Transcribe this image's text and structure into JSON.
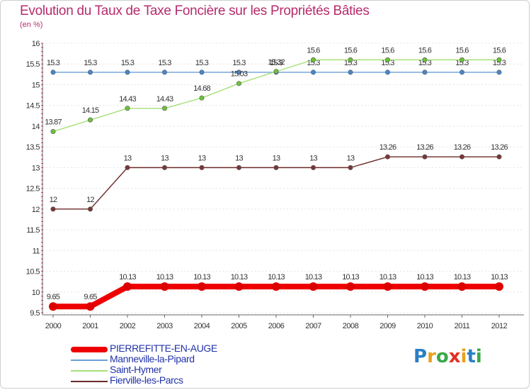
{
  "chart_data": {
    "type": "line",
    "title": "Evolution du Taux de Taxe Foncière sur les Propriétés Bâties",
    "ylabel": "(en %)",
    "xlabel": "",
    "ylim": [
      9.5,
      16
    ],
    "yticks": [
      "9.5",
      "10",
      "10.5",
      "11",
      "11.5",
      "12",
      "12.5",
      "13",
      "13.5",
      "14",
      "14.5",
      "15",
      "15.5",
      "16"
    ],
    "categories": [
      "2000",
      "2001",
      "2002",
      "2003",
      "2004",
      "2005",
      "2006",
      "2007",
      "2008",
      "2009",
      "2010",
      "2011",
      "2012"
    ],
    "series": [
      {
        "name": "Fierville-les-Parcs",
        "color": "#6b2a2a",
        "marker": "#7a3636",
        "values": [
          12,
          12,
          13,
          13,
          13,
          13,
          13,
          13,
          13,
          13.26,
          13.26,
          13.26,
          13.26
        ],
        "labels": [
          "12",
          "12",
          "13",
          "13",
          "13",
          "13",
          "13",
          "13",
          "13",
          "13.26",
          "13.26",
          "13.26",
          "13.26"
        ]
      },
      {
        "name": "Manneville-la-Pipard",
        "color": "#6a9ed8",
        "marker": "#4a86c8",
        "values": [
          15.3,
          15.3,
          15.3,
          15.3,
          15.3,
          15.3,
          15.3,
          15.3,
          15.3,
          15.3,
          15.3,
          15.3,
          15.3
        ],
        "labels": [
          "15.3",
          "15.3",
          "15.3",
          "15.3",
          "15.3",
          "15.3",
          "15.3",
          "15.3",
          "15.3",
          "15.3",
          "15.3",
          "15.3",
          "15.3"
        ]
      },
      {
        "name": "Saint-Hymer",
        "color": "#a6e07a",
        "marker": "#6cc23a",
        "values": [
          13.87,
          14.15,
          14.43,
          14.43,
          14.68,
          15.03,
          15.32,
          15.6,
          15.6,
          15.6,
          15.6,
          15.6,
          15.6
        ],
        "labels": [
          "13.87",
          "14.15",
          "14.43",
          "14.43",
          "14.68",
          "15.03",
          "15.32",
          "15.6",
          "15.6",
          "15.6",
          "15.6",
          "15.6",
          "15.6"
        ]
      },
      {
        "name": "PIERREFITTE-EN-AUGE",
        "color": "#ee0000",
        "marker": "#dd0000",
        "values": [
          9.65,
          9.65,
          10.13,
          10.13,
          10.13,
          10.13,
          10.13,
          10.13,
          10.13,
          10.13,
          10.13,
          10.13,
          10.13
        ],
        "labels": [
          "9.65",
          "9.65",
          "10.13",
          "10.13",
          "10.13",
          "10.13",
          "10.13",
          "10.13",
          "10.13",
          "10.13",
          "10.13",
          "10.13",
          "10.13"
        ]
      }
    ],
    "legend": [
      {
        "name": "PIERREFITTE-EN-AUGE",
        "color": "#ee0000",
        "thick": true
      },
      {
        "name": "Manneville-la-Pipard",
        "color": "#6a9ed8",
        "thick": false
      },
      {
        "name": "Saint-Hymer",
        "color": "#a6e07a",
        "thick": false
      },
      {
        "name": "Fierville-les-Parcs",
        "color": "#6b2a2a",
        "thick": false
      }
    ]
  },
  "logo": {
    "letters": [
      "P",
      "r",
      "o",
      "x",
      "i",
      "t",
      "i"
    ],
    "colors": [
      "#2b7fc4",
      "#e8a020",
      "#3aa84a",
      "#e03020",
      "#e8a020",
      "#2b7fc4",
      "#3aa84a"
    ]
  }
}
